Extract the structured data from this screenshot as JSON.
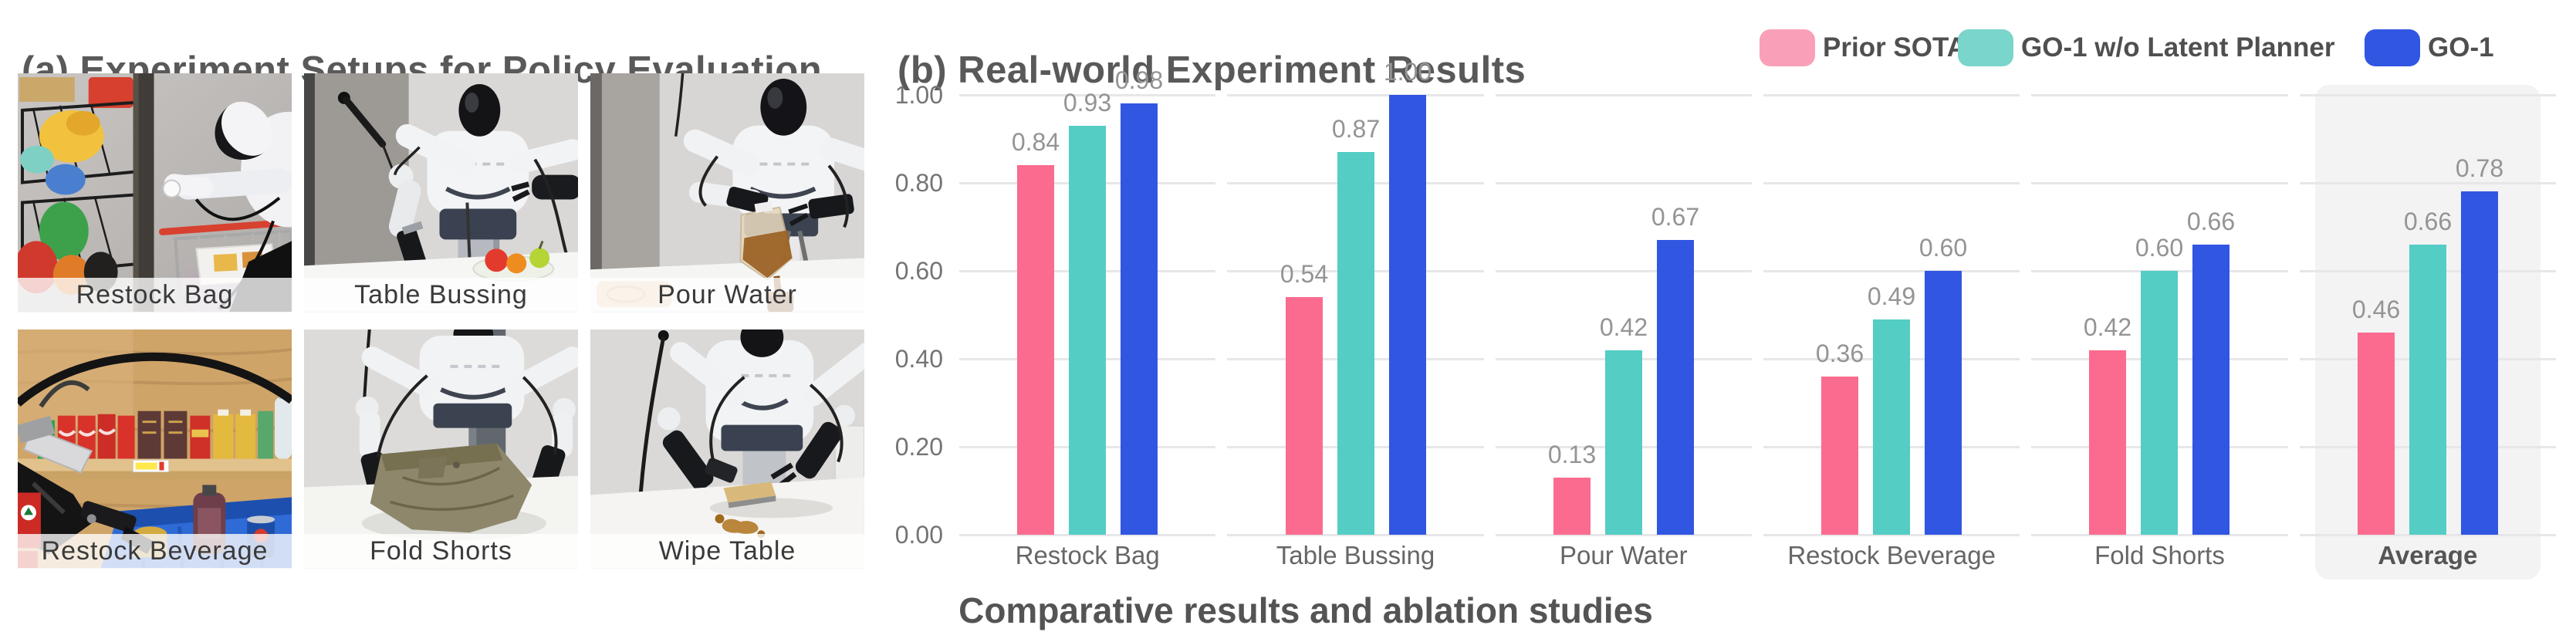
{
  "left_panel": {
    "title": "(a) Experiment Setups for Policy Evaluation",
    "photos": [
      {
        "label": "Restock Bag"
      },
      {
        "label": "Table Bussing"
      },
      {
        "label": "Pour Water"
      },
      {
        "label": "Restock Beverage"
      },
      {
        "label": "Fold Shorts"
      },
      {
        "label": "Wipe Table"
      }
    ]
  },
  "right_panel": {
    "title": "(b) Real-world Experiment Results",
    "caption": "Comparative results and ablation studies",
    "legend": [
      {
        "label": "Prior SOTA",
        "swatch_color": "#f9a0b8"
      },
      {
        "label": "GO-1 w/o Latent Planner",
        "swatch_color": "#7ad5cc"
      },
      {
        "label": "GO-1",
        "swatch_color": "#3156e1"
      }
    ]
  },
  "chart_data": {
    "type": "bar",
    "title": "(b) Real-world Experiment Results",
    "categories": [
      "Restock Bag",
      "Table Bussing",
      "Pour Water",
      "Restock Beverage",
      "Fold Shorts",
      "Average"
    ],
    "series": [
      {
        "name": "Prior SOTA",
        "color": "#fb6b8f",
        "values": [
          0.84,
          0.54,
          0.13,
          0.36,
          0.42,
          0.46
        ]
      },
      {
        "name": "GO-1 w/o Latent Planner",
        "color": "#54cdc4",
        "values": [
          0.93,
          0.87,
          0.42,
          0.49,
          0.6,
          0.66
        ]
      },
      {
        "name": "GO-1",
        "color": "#3156e1",
        "values": [
          0.98,
          1.0,
          0.67,
          0.6,
          0.66,
          0.78
        ]
      }
    ],
    "yticks": [
      0.0,
      0.2,
      0.4,
      0.6,
      0.8,
      1.0
    ],
    "ylim": [
      0,
      1.05
    ],
    "xlabel": "",
    "ylabel": "",
    "grid": "horizontal, segmented per category panel",
    "legend_position": "top-right",
    "value_labels": true,
    "highlight_category": "Average"
  }
}
